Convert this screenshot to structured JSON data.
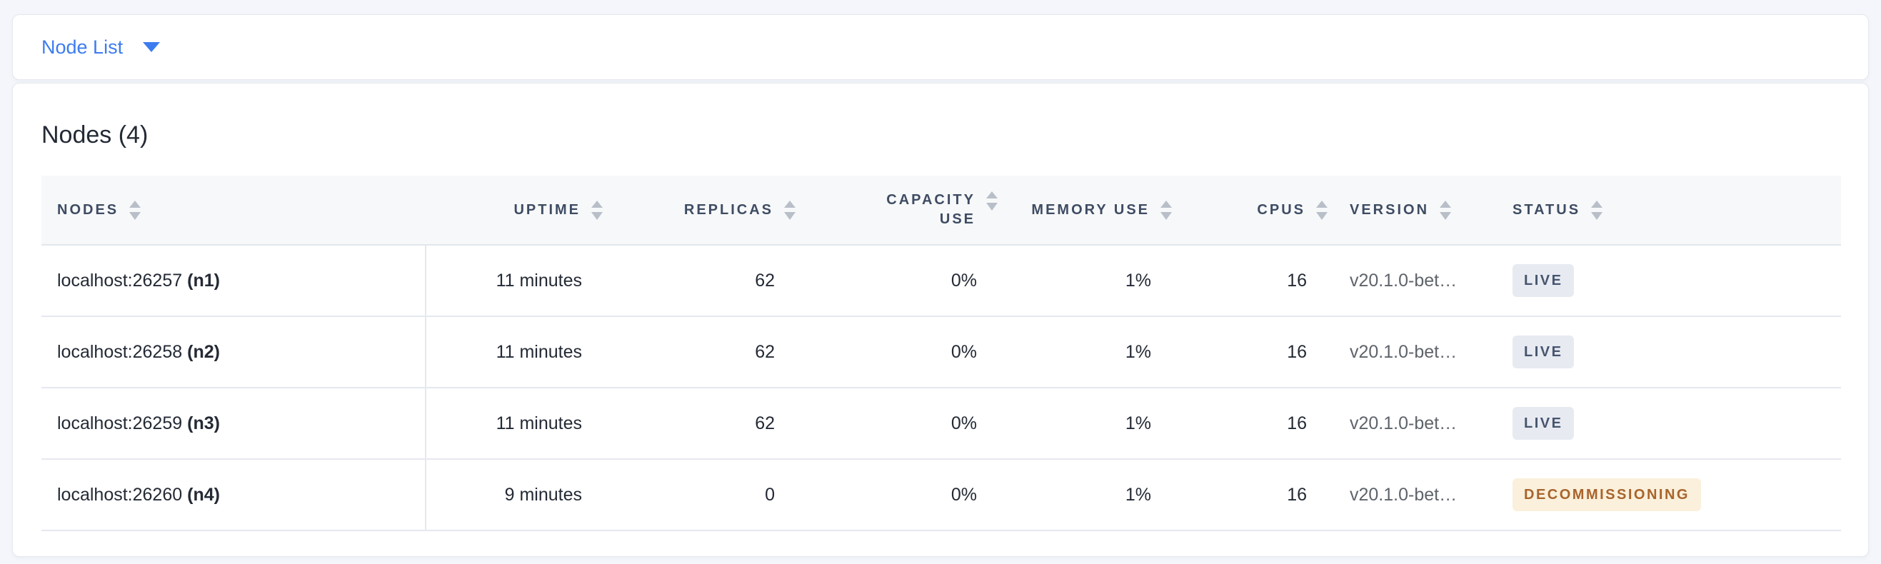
{
  "theme": {
    "accent": "#3d7cf0",
    "page_background": "#f4f6fb",
    "live_bg": "#e7eaf1",
    "live_text": "#46556e",
    "decommissioning_bg": "#faf0dc",
    "decommissioning_text": "#a8642c"
  },
  "toolbar": {
    "dropdown_label": "Node List",
    "dropdown_icon": "chevron-down-icon"
  },
  "main": {
    "title": "Nodes (4)",
    "table": {
      "sort_icon": "sort-arrows-icon",
      "columns": [
        {
          "key": "nodes",
          "label": "NODES",
          "align": "left"
        },
        {
          "key": "uptime",
          "label": "UPTIME",
          "align": "right"
        },
        {
          "key": "replicas",
          "label": "REPLICAS",
          "align": "right"
        },
        {
          "key": "capacity",
          "label": "CAPACITY USE",
          "align": "right",
          "wrap": true
        },
        {
          "key": "memory",
          "label": "MEMORY USE",
          "align": "right"
        },
        {
          "key": "cpus",
          "label": "CPUS",
          "align": "right"
        },
        {
          "key": "version",
          "label": "VERSION",
          "align": "left"
        },
        {
          "key": "status",
          "label": "STATUS",
          "align": "left"
        }
      ],
      "rows": [
        {
          "address": "localhost:26257",
          "node_id": "(n1)",
          "uptime": "11 minutes",
          "replicas": "62",
          "capacity": "0%",
          "memory": "1%",
          "cpus": "16",
          "version": "v20.1.0-bet…",
          "status": "LIVE",
          "status_type": "live"
        },
        {
          "address": "localhost:26258",
          "node_id": "(n2)",
          "uptime": "11 minutes",
          "replicas": "62",
          "capacity": "0%",
          "memory": "1%",
          "cpus": "16",
          "version": "v20.1.0-bet…",
          "status": "LIVE",
          "status_type": "live"
        },
        {
          "address": "localhost:26259",
          "node_id": "(n3)",
          "uptime": "11 minutes",
          "replicas": "62",
          "capacity": "0%",
          "memory": "1%",
          "cpus": "16",
          "version": "v20.1.0-bet…",
          "status": "LIVE",
          "status_type": "live"
        },
        {
          "address": "localhost:26260",
          "node_id": "(n4)",
          "uptime": "9 minutes",
          "replicas": "0",
          "capacity": "0%",
          "memory": "1%",
          "cpus": "16",
          "version": "v20.1.0-bet…",
          "status": "DECOMMISSIONING",
          "status_type": "decommissioning"
        }
      ]
    }
  }
}
